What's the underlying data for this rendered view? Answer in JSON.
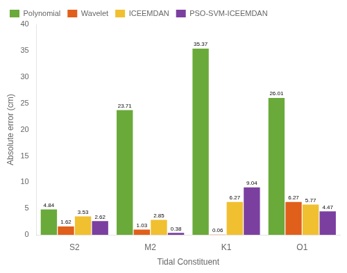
{
  "chart_data": {
    "type": "bar",
    "categories": [
      "S2",
      "M2",
      "K1",
      "O1"
    ],
    "series": [
      {
        "name": "Polynomial",
        "color": "#6aaa3a",
        "values": [
          4.84,
          23.71,
          35.37,
          26.01
        ]
      },
      {
        "name": "Wavelet",
        "color": "#e05f1b",
        "values": [
          1.62,
          1.03,
          0.06,
          6.27
        ]
      },
      {
        "name": "ICEEMDAN",
        "color": "#f0c030",
        "values": [
          3.53,
          2.85,
          6.27,
          5.77
        ]
      },
      {
        "name": "PSO-SVM-ICEEMDAN",
        "color": "#7b3fa0",
        "values": [
          2.62,
          0.38,
          9.04,
          4.47
        ]
      }
    ],
    "xlabel": "Tidal Constituent",
    "ylabel": "Absolute error (cm)",
    "ylim": [
      0,
      40
    ],
    "yticks": [
      0,
      5,
      10,
      15,
      20,
      25,
      30,
      35,
      40
    ],
    "grid": false,
    "legend": "upper left",
    "data_labels": true
  }
}
